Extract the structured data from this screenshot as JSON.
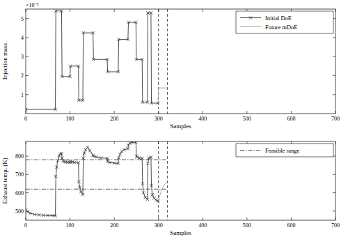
{
  "chart_data": [
    {
      "type": "line",
      "x_label": "Samples",
      "y_label": "Injection mass",
      "annotations": [
        "×10⁻⁵"
      ],
      "xlim": [
        0,
        700
      ],
      "xticks": [
        0,
        100,
        200,
        300,
        400,
        500,
        600,
        700
      ],
      "ylim": [
        0,
        5.5e-05
      ],
      "yticks": [
        {
          "value": 1e-05,
          "label": "1"
        },
        {
          "value": 2e-05,
          "label": "2"
        },
        {
          "value": 3e-05,
          "label": "3"
        },
        {
          "value": 4e-05,
          "label": "4"
        },
        {
          "value": 5e-05,
          "label": "5"
        }
      ],
      "legend": "top-right",
      "vlines": [
        300,
        320
      ],
      "series": [
        {
          "name": "Initial DoE",
          "color": "#333333",
          "marker": "x",
          "line_style": "solid",
          "x": [
            0,
            67,
            68,
            81,
            82,
            100,
            101,
            119,
            120,
            129,
            130,
            152,
            153,
            184,
            185,
            209,
            210,
            231,
            232,
            249,
            250,
            263,
            264,
            275,
            276,
            283,
            284,
            299
          ],
          "values": [
            2.2e-06,
            2.2e-06,
            5.4e-05,
            5.4e-05,
            1.95e-05,
            1.95e-05,
            2.5e-05,
            2.5e-05,
            7e-06,
            7e-06,
            4.25e-05,
            4.25e-05,
            2.85e-05,
            2.85e-05,
            2.2e-05,
            2.2e-05,
            3.9e-05,
            3.9e-05,
            4.8e-05,
            4.8e-05,
            2.85e-05,
            2.85e-05,
            6e-06,
            6e-06,
            5.3e-05,
            5.3e-05,
            5.5e-06,
            5.5e-06
          ]
        },
        {
          "name": "Future mDoE",
          "color": "#999999",
          "marker": "none",
          "line_style": "solid",
          "x": [
            299,
            300,
            320
          ],
          "values": [
            5.5e-06,
            1.35e-05,
            1.35e-05
          ]
        }
      ]
    },
    {
      "type": "line",
      "x_label": "Samples",
      "y_label": "Exhaust temp. (K)",
      "xlim": [
        0,
        700
      ],
      "xticks": [
        0,
        100,
        200,
        300,
        400,
        500,
        600,
        700
      ],
      "ylim": [
        450,
        880
      ],
      "yticks": [
        500,
        600,
        700,
        800
      ],
      "legend": "top-right",
      "vlines": [
        300,
        320
      ],
      "series": [
        {
          "color": "#333333",
          "marker": "x",
          "line_style": "solid",
          "x": [
            0,
            5,
            10,
            20,
            30,
            40,
            50,
            60,
            67,
            68,
            70,
            72,
            75,
            78,
            81,
            82,
            84,
            87,
            90,
            95,
            100,
            101,
            105,
            110,
            119,
            120,
            122,
            125,
            129,
            130,
            132,
            135,
            140,
            145,
            152,
            153,
            160,
            170,
            184,
            185,
            190,
            200,
            209,
            210,
            213,
            217,
            222,
            231,
            232,
            235,
            240,
            249,
            250,
            252,
            256,
            263,
            264,
            266,
            270,
            275,
            276,
            278,
            283,
            284,
            286,
            290,
            295,
            299
          ],
          "values": [
            505,
            495,
            488,
            482,
            479,
            477,
            476,
            475,
            474,
            690,
            740,
            775,
            800,
            812,
            815,
            790,
            775,
            770,
            768,
            767,
            766,
            770,
            768,
            766,
            765,
            660,
            630,
            605,
            590,
            790,
            815,
            835,
            848,
            830,
            805,
            800,
            795,
            790,
            788,
            770,
            765,
            762,
            760,
            790,
            810,
            825,
            835,
            840,
            860,
            870,
            875,
            875,
            800,
            795,
            790,
            788,
            650,
            600,
            575,
            565,
            760,
            790,
            795,
            640,
            590,
            570,
            560,
            555
          ]
        },
        {
          "color": "#999999",
          "marker": "none",
          "line_style": "solid",
          "x": [
            299,
            305,
            310,
            315,
            320
          ],
          "values": [
            555,
            600,
            630,
            648,
            660
          ]
        },
        {
          "name": "Feasible range",
          "color": "#333333",
          "marker": "none",
          "line_style": "dashdot",
          "x": [
            0,
            320,
            320,
            0,
            320
          ],
          "values": [
            620,
            620,
            null,
            780,
            780
          ]
        }
      ]
    }
  ]
}
